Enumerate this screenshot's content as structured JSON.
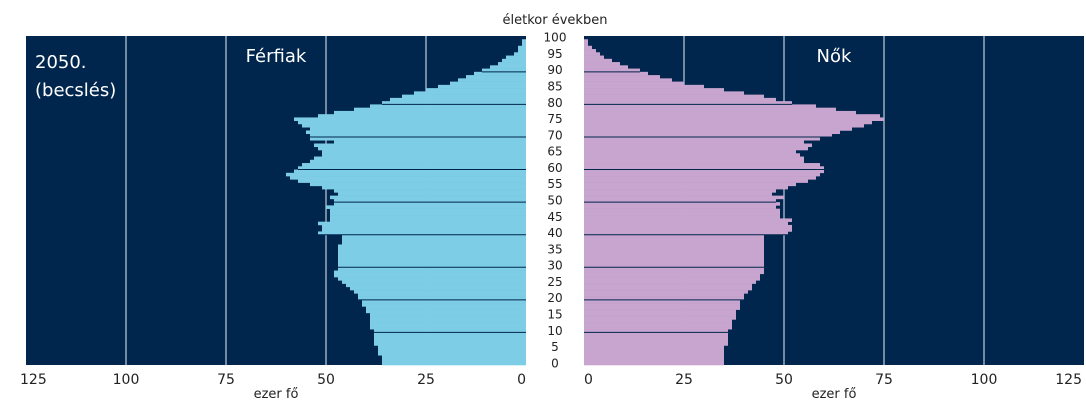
{
  "chart_data": {
    "type": "bar",
    "orientation": "horizontal",
    "layout": "population-pyramid",
    "title": "2050.",
    "subtitle": "(becslés)",
    "age_axis_label": "életkor években",
    "x_unit_left": "ezer fő",
    "x_unit_right": "ezer fő",
    "xlim": [
      0,
      125
    ],
    "x_ticks": [
      0,
      25,
      50,
      75,
      100,
      125
    ],
    "age_ticks": [
      0,
      5,
      10,
      15,
      20,
      25,
      30,
      35,
      40,
      45,
      50,
      55,
      60,
      65,
      70,
      75,
      80,
      85,
      90,
      95,
      100
    ],
    "age_range": [
      0,
      100
    ],
    "grid": true,
    "background_color": "#00264d",
    "series": [
      {
        "name": "Férfiak",
        "side": "left",
        "color": "#7ecde6",
        "ages": [
          0,
          1,
          2,
          3,
          4,
          5,
          6,
          7,
          8,
          9,
          10,
          11,
          12,
          13,
          14,
          15,
          16,
          17,
          18,
          19,
          20,
          21,
          22,
          23,
          24,
          25,
          26,
          27,
          28,
          29,
          30,
          31,
          32,
          33,
          34,
          35,
          36,
          37,
          38,
          39,
          40,
          41,
          42,
          43,
          44,
          45,
          46,
          47,
          48,
          49,
          50,
          51,
          52,
          53,
          54,
          55,
          56,
          57,
          58,
          59,
          60,
          61,
          62,
          63,
          64,
          65,
          66,
          67,
          68,
          69,
          70,
          71,
          72,
          73,
          74,
          75,
          76,
          77,
          78,
          79,
          80,
          81,
          82,
          83,
          84,
          85,
          86,
          87,
          88,
          89,
          90,
          91,
          92,
          93,
          94,
          95,
          96,
          97,
          98,
          99,
          100
        ],
        "values": [
          36,
          36,
          36,
          37,
          37,
          37,
          38,
          38,
          38,
          38,
          38,
          39,
          39,
          39,
          39,
          39,
          40,
          40,
          41,
          41,
          42,
          42,
          43,
          44,
          45,
          46,
          47,
          48,
          48,
          47,
          47,
          47,
          47,
          47,
          47,
          47,
          47,
          46,
          46,
          46,
          52,
          51,
          51,
          52,
          49,
          49,
          49,
          49,
          50,
          48,
          48,
          49,
          47,
          48,
          51,
          54,
          57,
          59,
          60,
          58,
          57,
          56,
          54,
          53,
          51,
          51,
          52,
          53,
          48,
          54,
          54,
          55,
          54,
          56,
          57,
          58,
          52,
          48,
          43,
          39,
          36,
          34,
          31,
          28,
          25,
          22,
          19,
          17,
          15,
          13,
          11,
          9,
          7,
          6,
          5,
          3,
          2,
          2,
          1,
          1,
          0
        ]
      },
      {
        "name": "Nők",
        "side": "right",
        "color": "#c8a5cf",
        "ages": [
          0,
          1,
          2,
          3,
          4,
          5,
          6,
          7,
          8,
          9,
          10,
          11,
          12,
          13,
          14,
          15,
          16,
          17,
          18,
          19,
          20,
          21,
          22,
          23,
          24,
          25,
          26,
          27,
          28,
          29,
          30,
          31,
          32,
          33,
          34,
          35,
          36,
          37,
          38,
          39,
          40,
          41,
          42,
          43,
          44,
          45,
          46,
          47,
          48,
          49,
          50,
          51,
          52,
          53,
          54,
          55,
          56,
          57,
          58,
          59,
          60,
          61,
          62,
          63,
          64,
          65,
          66,
          67,
          68,
          69,
          70,
          71,
          72,
          73,
          74,
          75,
          76,
          77,
          78,
          79,
          80,
          81,
          82,
          83,
          84,
          85,
          86,
          87,
          88,
          89,
          90,
          91,
          92,
          93,
          94,
          95,
          96,
          97,
          98,
          99,
          100
        ],
        "values": [
          35,
          35,
          35,
          35,
          35,
          35,
          36,
          36,
          36,
          36,
          36,
          37,
          37,
          37,
          38,
          38,
          38,
          39,
          39,
          39,
          40,
          40,
          41,
          42,
          42,
          43,
          44,
          44,
          45,
          45,
          45,
          45,
          45,
          45,
          45,
          45,
          45,
          45,
          45,
          45,
          51,
          52,
          52,
          51,
          52,
          49,
          49,
          49,
          48,
          49,
          48,
          50,
          47,
          48,
          51,
          53,
          56,
          58,
          59,
          60,
          60,
          59,
          55,
          55,
          54,
          53,
          56,
          57,
          55,
          59,
          62,
          64,
          67,
          70,
          72,
          75,
          74,
          68,
          63,
          58,
          52,
          48,
          45,
          40,
          35,
          30,
          25,
          22,
          19,
          16,
          14,
          11,
          9,
          7,
          5,
          4,
          3,
          2,
          1,
          1,
          0
        ]
      }
    ]
  }
}
